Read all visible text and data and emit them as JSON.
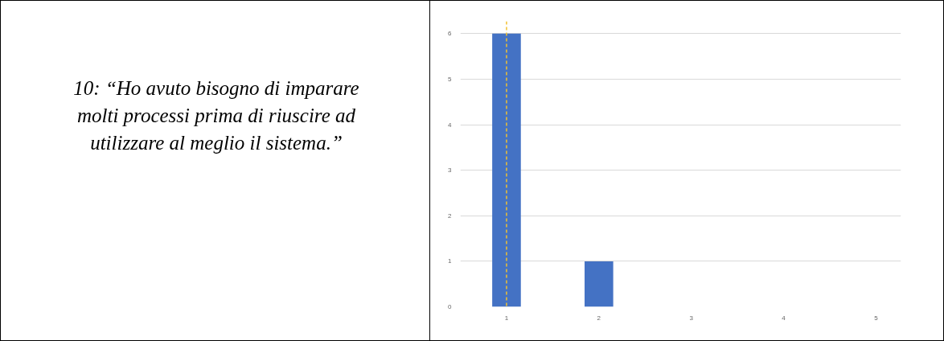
{
  "chart_data": {
    "type": "bar",
    "title": "10: “Ho avuto bisogno di imparare molti processi prima di riuscire ad utilizzare al meglio il sistema.”",
    "x": [
      1,
      2,
      3,
      4,
      5
    ],
    "values": [
      6,
      1,
      0,
      0,
      0
    ],
    "color": "#4472c4",
    "xlim": [
      0.5,
      5.27
    ],
    "xticks": [
      1,
      2,
      3,
      4,
      5
    ],
    "ylim": [
      0,
      6.27
    ],
    "yticks": [
      0,
      1,
      2,
      3,
      4,
      5,
      6
    ],
    "grid": "y",
    "ref_lines": [
      {
        "axis": "x",
        "value": 1,
        "color": "#f2c12e",
        "line_style": "dashed"
      }
    ]
  }
}
